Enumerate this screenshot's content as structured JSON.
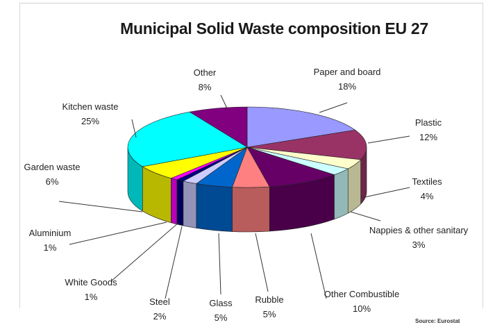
{
  "chart_data": {
    "type": "pie",
    "title": "Municipal Solid Waste composition EU 27",
    "source": "Source: Eurostat",
    "slices": [
      {
        "name": "Paper and board",
        "value": 18,
        "label": "18%",
        "color": "#9999ff"
      },
      {
        "name": "Plastic",
        "value": 12,
        "label": "12%",
        "color": "#993366"
      },
      {
        "name": "Textiles",
        "value": 4,
        "label": "4%",
        "color": "#ffffcc"
      },
      {
        "name": "Nappies & other sanitary",
        "value": 3,
        "label": "3%",
        "color": "#ccffff"
      },
      {
        "name": "Other Combustible",
        "value": 10,
        "label": "10%",
        "color": "#660066"
      },
      {
        "name": "Rubble",
        "value": 5,
        "label": "5%",
        "color": "#ff8080"
      },
      {
        "name": "Glass",
        "value": 5,
        "label": "5%",
        "color": "#0066cc"
      },
      {
        "name": "Steel",
        "value": 2,
        "label": "2%",
        "color": "#ccccff"
      },
      {
        "name": "White Goods",
        "value": 1,
        "label": "1%",
        "color": "#000080"
      },
      {
        "name": "Aluminium",
        "value": 1,
        "label": "1%",
        "color": "#ff00ff"
      },
      {
        "name": "Garden waste",
        "value": 6,
        "label": "6%",
        "color": "#ffff00"
      },
      {
        "name": "Kitchen waste",
        "value": 25,
        "label": "25%",
        "color": "#00ffff"
      },
      {
        "name": "Other",
        "value": 8,
        "label": "8%",
        "color": "#800080"
      }
    ]
  }
}
